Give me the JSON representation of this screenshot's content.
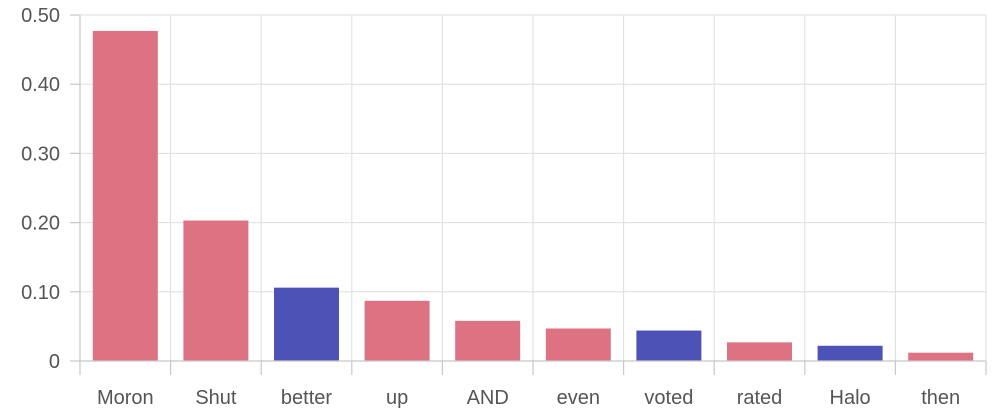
{
  "chart_data": {
    "type": "bar",
    "title": "",
    "xlabel": "",
    "ylabel": "",
    "categories": [
      "Moron",
      "Shut",
      "better",
      "up",
      "AND",
      "even",
      "voted",
      "rated",
      "Halo",
      "then"
    ],
    "values": [
      0.477,
      0.203,
      0.106,
      0.087,
      0.058,
      0.047,
      0.044,
      0.027,
      0.022,
      0.012
    ],
    "bar_colors": [
      "#dd7382",
      "#dd7382",
      "#4d52b6",
      "#dd7382",
      "#dd7382",
      "#dd7382",
      "#4d52b6",
      "#dd7382",
      "#4d52b6",
      "#dd7382"
    ],
    "ylim": [
      0,
      0.5
    ],
    "yticks": [
      0,
      0.1,
      0.2,
      0.3,
      0.4,
      0.5
    ],
    "ytick_labels": [
      "0",
      "0.10",
      "0.20",
      "0.30",
      "0.40",
      "0.50"
    ],
    "grid": true,
    "legend": "none"
  }
}
